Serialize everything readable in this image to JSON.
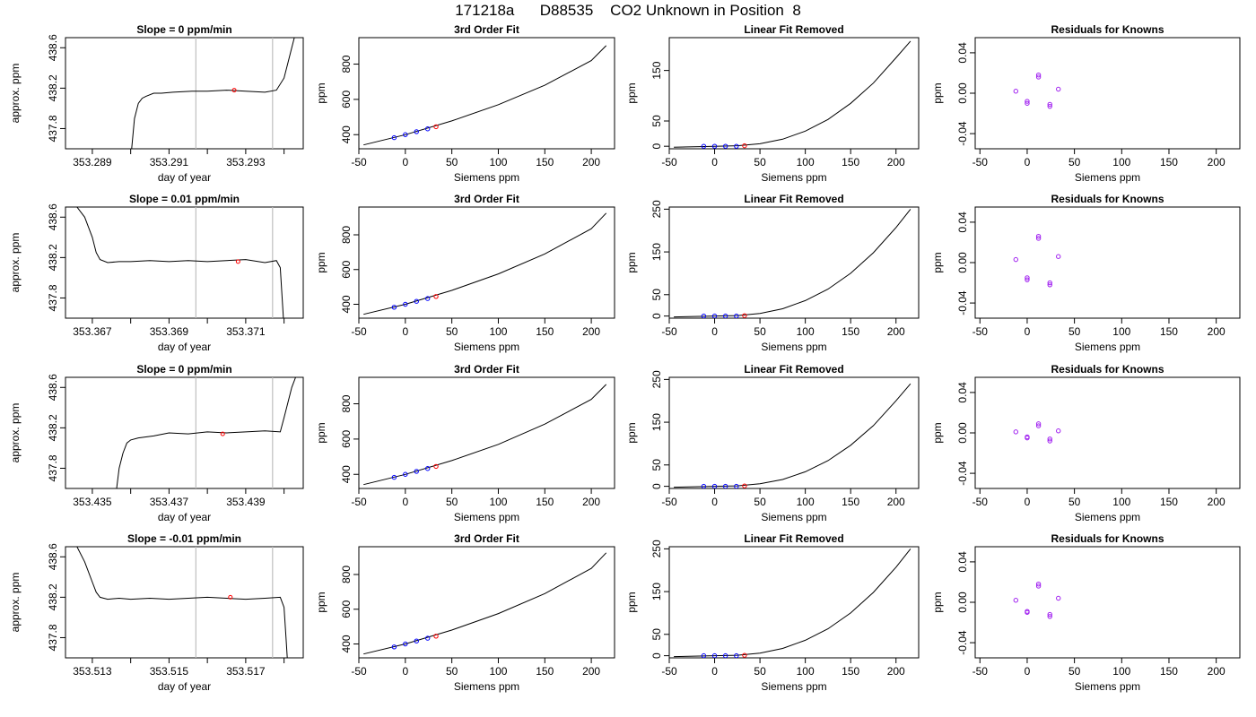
{
  "page": {
    "title": "171218a      D88535    CO2 Unknown in Position  8"
  },
  "colors": {
    "line": "#000000",
    "window": "#bebebe",
    "known_point": "#0000ff",
    "unknown_point": "#ff0000",
    "residual_point": "#a020f0"
  },
  "chart_data": [
    {
      "type": "line",
      "panel": "raw",
      "row": 0,
      "title": "Slope =  0  ppm/min",
      "xlabel": "day of year",
      "ylabel": "approx. ppm",
      "xlim": [
        353.2883,
        353.2945
      ],
      "ylim": [
        437.6,
        438.7
      ],
      "xticks": [
        353.289,
        353.29,
        353.291,
        353.292,
        353.293,
        353.294
      ],
      "xtick_labels": [
        "353.289",
        "",
        "353.291",
        "",
        "353.293",
        ""
      ],
      "yticks": [
        437.8,
        438.2,
        438.6
      ],
      "ytick_labels": [
        "437.8",
        "438.2",
        "438.6"
      ],
      "window": [
        353.2917,
        353.2937
      ],
      "curve_x": [
        353.29,
        353.2901,
        353.2902,
        353.2903,
        353.2904,
        353.2906,
        353.2908,
        353.2911,
        353.2916,
        353.292,
        353.2925,
        353.293,
        353.2935,
        353.2938,
        353.294,
        353.2941,
        353.2942,
        353.2943
      ],
      "curve_y": [
        437.5,
        437.9,
        438.05,
        438.1,
        438.12,
        438.15,
        438.15,
        438.16,
        438.17,
        438.17,
        438.18,
        438.17,
        438.16,
        438.18,
        438.3,
        438.45,
        438.6,
        438.75
      ],
      "marker": {
        "x": 353.2927,
        "y": 438.18
      }
    },
    {
      "type": "line",
      "panel": "fit",
      "row": 0,
      "title": "3rd Order Fit",
      "xlabel": "Siemens ppm",
      "ylabel": "ppm",
      "xlim": [
        -50,
        225
      ],
      "ylim": [
        320,
        950
      ],
      "xticks": [
        -50,
        0,
        50,
        100,
        150,
        200
      ],
      "yticks": [
        400,
        600,
        800
      ],
      "curve_x": [
        -45,
        0,
        50,
        100,
        150,
        200,
        216
      ],
      "curve_y": [
        342,
        400,
        478,
        570,
        680,
        820,
        905
      ],
      "known_points": [
        {
          "x": -12,
          "y": 383
        },
        {
          "x": 0,
          "y": 400
        },
        {
          "x": 12,
          "y": 417
        },
        {
          "x": 24,
          "y": 433
        }
      ],
      "unknown_point": {
        "x": 33,
        "y": 445
      }
    },
    {
      "type": "line",
      "panel": "linear_removed",
      "row": 0,
      "title": "Linear Fit Removed",
      "xlabel": "Siemens ppm",
      "ylabel": "ppm",
      "xlim": [
        -50,
        225
      ],
      "ylim": [
        -5,
        215
      ],
      "xticks": [
        -50,
        0,
        50,
        100,
        150,
        200
      ],
      "yticks": [
        0,
        50,
        150
      ],
      "curve_x": [
        -45,
        0,
        25,
        50,
        75,
        100,
        125,
        150,
        175,
        200,
        216
      ],
      "curve_y": [
        -2,
        0,
        1,
        5,
        14,
        30,
        53,
        85,
        125,
        175,
        208
      ],
      "known_points": [
        {
          "x": -12,
          "y": 0
        },
        {
          "x": 0,
          "y": 0
        },
        {
          "x": 12,
          "y": 0
        },
        {
          "x": 24,
          "y": 0
        }
      ],
      "unknown_point": {
        "x": 33,
        "y": 1
      }
    },
    {
      "type": "scatter",
      "panel": "residuals",
      "row": 0,
      "title": "Residuals for Knowns",
      "xlabel": "Siemens ppm",
      "ylabel": "ppm",
      "xlim": [
        -55,
        225
      ],
      "ylim": [
        -0.055,
        0.055
      ],
      "xticks": [
        -50,
        0,
        50,
        100,
        150,
        200
      ],
      "yticks": [
        -0.04,
        0.0,
        0.04
      ],
      "ytick_labels": [
        "-0.04",
        "0.00",
        "0.04"
      ],
      "points": [
        {
          "x": -12,
          "y": 0.002
        },
        {
          "x": 0,
          "y": -0.008
        },
        {
          "x": 0,
          "y": -0.01
        },
        {
          "x": 12,
          "y": 0.018
        },
        {
          "x": 12,
          "y": 0.016
        },
        {
          "x": 24,
          "y": -0.011
        },
        {
          "x": 24,
          "y": -0.013
        },
        {
          "x": 33,
          "y": 0.004
        }
      ]
    },
    {
      "type": "line",
      "panel": "raw",
      "row": 1,
      "title": "Slope =  0.01  ppm/min",
      "xlabel": "day of year",
      "ylabel": "approx. ppm",
      "xlim": [
        353.3663,
        353.3725
      ],
      "ylim": [
        437.6,
        438.7
      ],
      "xticks": [
        353.367,
        353.368,
        353.369,
        353.37,
        353.371,
        353.372
      ],
      "xtick_labels": [
        "353.367",
        "",
        "353.369",
        "",
        "353.371",
        ""
      ],
      "yticks": [
        437.8,
        438.2,
        438.6
      ],
      "ytick_labels": [
        "437.8",
        "438.2",
        "438.6"
      ],
      "window": [
        353.3697,
        353.3717
      ],
      "curve_x": [
        353.3666,
        353.3668,
        353.367,
        353.3671,
        353.3672,
        353.3674,
        353.3677,
        353.368,
        353.3685,
        353.369,
        353.3695,
        353.37,
        353.3705,
        353.371,
        353.3715,
        353.3718,
        353.3719,
        353.37195,
        353.372
      ],
      "curve_y": [
        438.7,
        438.6,
        438.4,
        438.25,
        438.18,
        438.15,
        438.16,
        438.16,
        438.17,
        438.16,
        438.17,
        438.16,
        438.17,
        438.18,
        438.15,
        438.17,
        438.1,
        437.8,
        437.5
      ],
      "marker": {
        "x": 353.3708,
        "y": 438.16
      }
    },
    {
      "type": "line",
      "panel": "fit",
      "row": 1,
      "title": "3rd Order Fit",
      "xlabel": "Siemens ppm",
      "ylabel": "ppm",
      "xlim": [
        -50,
        225
      ],
      "ylim": [
        320,
        960
      ],
      "xticks": [
        -50,
        0,
        50,
        100,
        150,
        200
      ],
      "yticks": [
        400,
        600,
        800
      ],
      "curve_x": [
        -45,
        0,
        50,
        100,
        150,
        200,
        216
      ],
      "curve_y": [
        342,
        400,
        480,
        575,
        690,
        835,
        925
      ],
      "known_points": [
        {
          "x": -12,
          "y": 383
        },
        {
          "x": 0,
          "y": 400
        },
        {
          "x": 12,
          "y": 417
        },
        {
          "x": 24,
          "y": 433
        }
      ],
      "unknown_point": {
        "x": 33,
        "y": 445
      }
    },
    {
      "type": "line",
      "panel": "linear_removed",
      "row": 1,
      "title": "Linear Fit Removed",
      "xlabel": "Siemens ppm",
      "ylabel": "ppm",
      "xlim": [
        -50,
        225
      ],
      "ylim": [
        -5,
        255
      ],
      "xticks": [
        -50,
        0,
        50,
        100,
        150,
        200
      ],
      "yticks": [
        0,
        50,
        150,
        250
      ],
      "curve_x": [
        -45,
        0,
        25,
        50,
        75,
        100,
        125,
        150,
        175,
        200,
        216
      ],
      "curve_y": [
        -2,
        0,
        1,
        6,
        17,
        36,
        63,
        100,
        148,
        207,
        250
      ],
      "known_points": [
        {
          "x": -12,
          "y": 0
        },
        {
          "x": 0,
          "y": 0
        },
        {
          "x": 12,
          "y": 0
        },
        {
          "x": 24,
          "y": 0
        }
      ],
      "unknown_point": {
        "x": 33,
        "y": 1
      }
    },
    {
      "type": "scatter",
      "panel": "residuals",
      "row": 1,
      "title": "Residuals for Knowns",
      "xlabel": "Siemens ppm",
      "ylabel": "ppm",
      "xlim": [
        -55,
        225
      ],
      "ylim": [
        -0.055,
        0.055
      ],
      "xticks": [
        -50,
        0,
        50,
        100,
        150,
        200
      ],
      "yticks": [
        -0.04,
        0.0,
        0.04
      ],
      "ytick_labels": [
        "-0.04",
        "0.00",
        "0.04"
      ],
      "points": [
        {
          "x": -12,
          "y": 0.003
        },
        {
          "x": 0,
          "y": -0.015
        },
        {
          "x": 0,
          "y": -0.017
        },
        {
          "x": 12,
          "y": 0.026
        },
        {
          "x": 12,
          "y": 0.024
        },
        {
          "x": 24,
          "y": -0.02
        },
        {
          "x": 24,
          "y": -0.022
        },
        {
          "x": 33,
          "y": 0.006
        }
      ]
    },
    {
      "type": "line",
      "panel": "raw",
      "row": 2,
      "title": "Slope =  0  ppm/min",
      "xlabel": "day of year",
      "ylabel": "approx. ppm",
      "xlim": [
        353.4343,
        353.4405
      ],
      "ylim": [
        437.6,
        438.7
      ],
      "xticks": [
        353.435,
        353.436,
        353.437,
        353.438,
        353.439,
        353.44
      ],
      "xtick_labels": [
        "353.435",
        "",
        "353.437",
        "",
        "353.439",
        ""
      ],
      "yticks": [
        437.8,
        438.2,
        438.6
      ],
      "ytick_labels": [
        "437.8",
        "438.2",
        "438.6"
      ],
      "window": [
        353.4377,
        353.4397
      ],
      "curve_x": [
        353.4356,
        353.4357,
        353.4358,
        353.4359,
        353.436,
        353.4362,
        353.4366,
        353.437,
        353.4375,
        353.438,
        353.4385,
        353.439,
        353.4395,
        353.4399,
        353.44,
        353.4401,
        353.4402,
        353.4403
      ],
      "curve_y": [
        437.5,
        437.8,
        437.95,
        438.05,
        438.08,
        438.1,
        438.12,
        438.15,
        438.14,
        438.16,
        438.15,
        438.16,
        438.17,
        438.16,
        438.3,
        438.45,
        438.6,
        438.7
      ],
      "marker": {
        "x": 353.4384,
        "y": 438.14
      }
    },
    {
      "type": "line",
      "panel": "fit",
      "row": 2,
      "title": "3rd Order Fit",
      "xlabel": "Siemens ppm",
      "ylabel": "ppm",
      "xlim": [
        -50,
        225
      ],
      "ylim": [
        320,
        950
      ],
      "xticks": [
        -50,
        0,
        50,
        100,
        150,
        200
      ],
      "yticks": [
        400,
        600,
        800
      ],
      "curve_x": [
        -45,
        0,
        50,
        100,
        150,
        200,
        216
      ],
      "curve_y": [
        342,
        400,
        478,
        570,
        685,
        825,
        910
      ],
      "known_points": [
        {
          "x": -12,
          "y": 383
        },
        {
          "x": 0,
          "y": 400
        },
        {
          "x": 12,
          "y": 417
        },
        {
          "x": 24,
          "y": 433
        }
      ],
      "unknown_point": {
        "x": 33,
        "y": 445
      }
    },
    {
      "type": "line",
      "panel": "linear_removed",
      "row": 2,
      "title": "Linear Fit Removed",
      "xlabel": "Siemens ppm",
      "ylabel": "ppm",
      "xlim": [
        -50,
        225
      ],
      "ylim": [
        -5,
        255
      ],
      "xticks": [
        -50,
        0,
        50,
        100,
        150,
        200
      ],
      "yticks": [
        0,
        50,
        150,
        250
      ],
      "curve_x": [
        -45,
        0,
        25,
        50,
        75,
        100,
        125,
        150,
        175,
        200,
        216
      ],
      "curve_y": [
        -2,
        0,
        1,
        6,
        16,
        34,
        60,
        96,
        142,
        200,
        240
      ],
      "known_points": [
        {
          "x": -12,
          "y": 0
        },
        {
          "x": 0,
          "y": 0
        },
        {
          "x": 12,
          "y": 0
        },
        {
          "x": 24,
          "y": 0
        }
      ],
      "unknown_point": {
        "x": 33,
        "y": 1
      }
    },
    {
      "type": "scatter",
      "panel": "residuals",
      "row": 2,
      "title": "Residuals for Knowns",
      "xlabel": "Siemens ppm",
      "ylabel": "ppm",
      "xlim": [
        -55,
        225
      ],
      "ylim": [
        -0.055,
        0.055
      ],
      "xticks": [
        -50,
        0,
        50,
        100,
        150,
        200
      ],
      "yticks": [
        -0.04,
        0.0,
        0.04
      ],
      "ytick_labels": [
        "-0.04",
        "0.00",
        "0.04"
      ],
      "points": [
        {
          "x": -12,
          "y": 0.001
        },
        {
          "x": 0,
          "y": -0.004
        },
        {
          "x": 0,
          "y": -0.005
        },
        {
          "x": 12,
          "y": 0.009
        },
        {
          "x": 12,
          "y": 0.007
        },
        {
          "x": 24,
          "y": -0.006
        },
        {
          "x": 24,
          "y": -0.008
        },
        {
          "x": 33,
          "y": 0.002
        }
      ]
    },
    {
      "type": "line",
      "panel": "raw",
      "row": 3,
      "title": "Slope =  -0.01  ppm/min",
      "xlabel": "day of year",
      "ylabel": "approx. ppm",
      "xlim": [
        353.5123,
        353.5185
      ],
      "ylim": [
        437.6,
        438.7
      ],
      "xticks": [
        353.513,
        353.514,
        353.515,
        353.516,
        353.517,
        353.518
      ],
      "xtick_labels": [
        "353.513",
        "",
        "353.515",
        "",
        "353.517",
        ""
      ],
      "yticks": [
        437.8,
        438.2,
        438.6
      ],
      "ytick_labels": [
        "437.8",
        "438.2",
        "438.6"
      ],
      "window": [
        353.5157,
        353.5177
      ],
      "curve_x": [
        353.5126,
        353.5128,
        353.513,
        353.5131,
        353.5132,
        353.5134,
        353.5137,
        353.514,
        353.5145,
        353.515,
        353.5155,
        353.516,
        353.5165,
        353.517,
        353.5175,
        353.5179,
        353.518,
        353.51805,
        353.5181
      ],
      "curve_y": [
        438.7,
        438.55,
        438.35,
        438.25,
        438.2,
        438.18,
        438.19,
        438.18,
        438.19,
        438.18,
        438.19,
        438.2,
        438.19,
        438.18,
        438.19,
        438.2,
        438.1,
        437.8,
        437.5
      ],
      "marker": {
        "x": 353.5166,
        "y": 438.2
      }
    },
    {
      "type": "line",
      "panel": "fit",
      "row": 3,
      "title": "3rd Order Fit",
      "xlabel": "Siemens ppm",
      "ylabel": "ppm",
      "xlim": [
        -50,
        225
      ],
      "ylim": [
        320,
        960
      ],
      "xticks": [
        -50,
        0,
        50,
        100,
        150,
        200
      ],
      "yticks": [
        400,
        600,
        800
      ],
      "curve_x": [
        -45,
        0,
        50,
        100,
        150,
        200,
        216
      ],
      "curve_y": [
        342,
        400,
        480,
        575,
        690,
        835,
        925
      ],
      "known_points": [
        {
          "x": -12,
          "y": 383
        },
        {
          "x": 0,
          "y": 400
        },
        {
          "x": 12,
          "y": 417
        },
        {
          "x": 24,
          "y": 433
        }
      ],
      "unknown_point": {
        "x": 33,
        "y": 445
      }
    },
    {
      "type": "line",
      "panel": "linear_removed",
      "row": 3,
      "title": "Linear Fit Removed",
      "xlabel": "Siemens ppm",
      "ylabel": "ppm",
      "xlim": [
        -50,
        225
      ],
      "ylim": [
        -5,
        255
      ],
      "xticks": [
        -50,
        0,
        50,
        100,
        150,
        200
      ],
      "yticks": [
        0,
        50,
        150,
        250
      ],
      "curve_x": [
        -45,
        0,
        25,
        50,
        75,
        100,
        125,
        150,
        175,
        200,
        216
      ],
      "curve_y": [
        -2,
        0,
        1,
        6,
        17,
        36,
        63,
        100,
        148,
        207,
        250
      ],
      "known_points": [
        {
          "x": -12,
          "y": 0
        },
        {
          "x": 0,
          "y": 0
        },
        {
          "x": 12,
          "y": 0
        },
        {
          "x": 24,
          "y": 0
        }
      ],
      "unknown_point": {
        "x": 33,
        "y": 1
      }
    },
    {
      "type": "scatter",
      "panel": "residuals",
      "row": 3,
      "title": "Residuals for Knowns",
      "xlabel": "Siemens ppm",
      "ylabel": "ppm",
      "xlim": [
        -55,
        225
      ],
      "ylim": [
        -0.055,
        0.055
      ],
      "xticks": [
        -50,
        0,
        50,
        100,
        150,
        200
      ],
      "yticks": [
        -0.04,
        0.0,
        0.04
      ],
      "ytick_labels": [
        "-0.04",
        "0.00",
        "0.04"
      ],
      "points": [
        {
          "x": -12,
          "y": 0.002
        },
        {
          "x": 0,
          "y": -0.009
        },
        {
          "x": 0,
          "y": -0.01
        },
        {
          "x": 12,
          "y": 0.018
        },
        {
          "x": 12,
          "y": 0.016
        },
        {
          "x": 24,
          "y": -0.012
        },
        {
          "x": 24,
          "y": -0.014
        },
        {
          "x": 33,
          "y": 0.004
        }
      ]
    }
  ]
}
